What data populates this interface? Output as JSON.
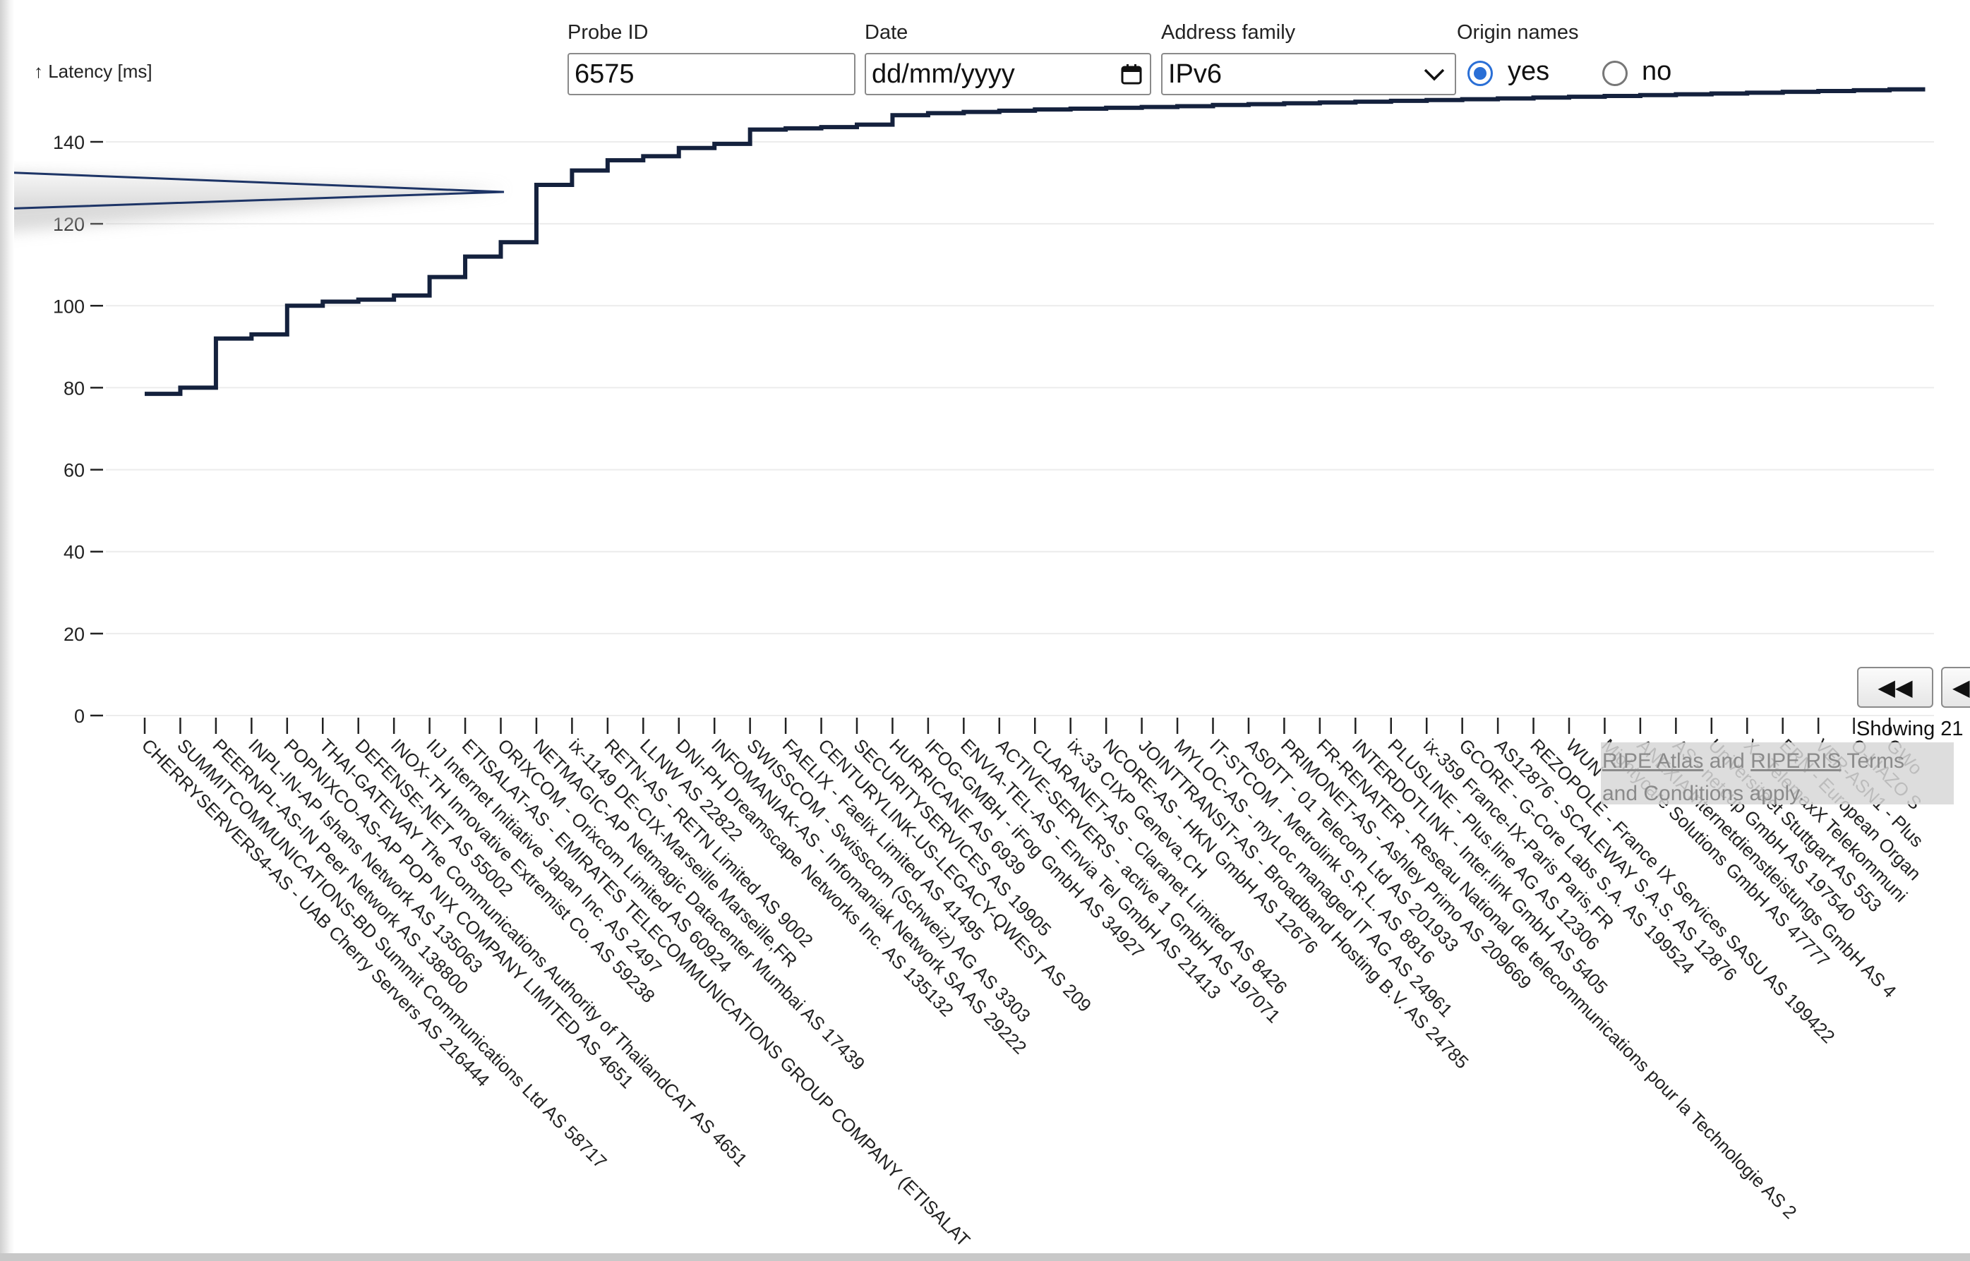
{
  "controls": {
    "probe_label": "Probe ID",
    "probe_value": "6575",
    "date_label": "Date",
    "date_placeholder": "dd/mm/yyyy",
    "family_label": "Address family",
    "family_value": "IPv6",
    "origin_label": "Origin names",
    "origin_yes": "yes",
    "origin_no": "no",
    "origin_selected": "yes"
  },
  "pager": {
    "first_label": "◀◀",
    "prev_label": "◀",
    "showing_text": "Showing 21"
  },
  "footer": {
    "atlas": "RIPE Atlas",
    "and": "and",
    "ris": "RIPE RIS",
    "terms": "Terms",
    "terms2": "and Conditions apply."
  },
  "colors": {
    "line": "#14213d",
    "accent": "#2a6fd6",
    "grid": "#ececec"
  },
  "chart_data": {
    "type": "line",
    "ylabel": "↑ Latency [ms]",
    "ylim": [
      0,
      150
    ],
    "yticks": [
      0,
      20,
      40,
      60,
      80,
      100,
      120,
      140
    ],
    "grid": true,
    "categories": [
      "CHERRYSERVERS4-AS - UAB Cherry Servers AS 216444",
      "SUMMITCOMMUNICATIONS-BD Summit Communications Ltd AS 58717",
      "PEERNPL-AS-IN Peer Network AS 138800",
      "INPL-IN-AP Ishans Network AS 135063",
      "POPNIXCO-AS-AP POP NIX COMPANY LIMITED AS 4651",
      "THAI-GATEWAY The Communications Authority of ThailandCAT AS 4651",
      "DEFENSE-NET AS 55002",
      "INOX-TH Innovative Extremist Co. AS 59238",
      "IIJ Internet Initiative Japan Inc. AS 2497",
      "ETISALAT-AS - EMIRATES TELECOMMUNICATIONS GROUP COMPANY (ETISALAT",
      "ORIXCOM - Orixcom Limited AS 60924",
      "NETMAGIC-AP Netmagic Datacenter Mumbai AS 17439",
      "ix-1149 DE-CIX-Marseille Marseille,FR",
      "RETN-AS - RETN Limited AS 9002",
      "LLNW AS 22822",
      "DNI-PH Dreamscape Networks Inc. AS 135132",
      "INFOMANIAK-AS - Infomaniak Network SA AS 29222",
      "SWISSCOM - Swisscom (Schweiz) AG AS 3303",
      "FAELIX - Faelix Limited AS 41495",
      "CENTURYLINK-US-LEGACY-QWEST AS 209",
      "SECURITYSERVICES AS 19905",
      "HURRICANE AS 6939",
      "IFOG-GMBH - iFog GmbH AS 34927",
      "ENVIA-TEL-AS - Envia Tel GmbH AS 21413",
      "ACTIVE-SERVERS - active 1 GmbH AS 197071",
      "CLARANET-AS - Claranet Limited AS 8426",
      "ix-33 CIXP Geneva,CH",
      "NCORE-AS - HKN GmbH AS 12676",
      "JOINTTRANSIT-AS - Broadband Hosting B.V. AS 24785",
      "MYLOC-AS - myLoc managed IT AG AS 24961",
      "IT-STCOM - Metrolink S.R.L. AS 8816",
      "AS0TT - 01 Telecom Ltd AS 201933",
      "PRIMONET-AS - Ashley Primo AS 209669",
      "FR-RENATER - Reseau National de telecommunications pour la Technologie AS 2",
      "INTERDOTLINK - Inter.link GmbH AS 5405",
      "PLUSLINE - Plus.line AG AS 12306",
      "ix-359 France-IX-Paris Paris,FR",
      "GCORE - G-Core Labs S.A. AS 199524",
      "AS12876 - SCALEWAY S.A.S. AS 12876",
      "REZOPOLE - France IX Services SASU AS 199422",
      "WUN",
      "Mightycare Solutions GmbH AS 47777",
      "ANEXIA Internetdienstleistungs GmbH AS 4",
      "AS - netcup GmbH AS 197540",
      "Universitaet Stuttgart AS 553",
      "X - TelemaxX Telekommuni",
      "ERN - European Organ",
      "VER-ASN1 - Plus",
      "O-LIAZO S",
      "GWo"
    ],
    "values": [
      78.5,
      80,
      92,
      93,
      100,
      101,
      101.5,
      102.5,
      107,
      112,
      115.5,
      129.5,
      133,
      135.5,
      136.5,
      138.5,
      139.5,
      143,
      143.3,
      143.6,
      144.2,
      146.5,
      147,
      147.3,
      147.6,
      147.9,
      148.1,
      148.3,
      148.5,
      148.7,
      149,
      149.2,
      149.4,
      149.6,
      149.8,
      150,
      150.2,
      150.4,
      150.6,
      150.8,
      151,
      151.2,
      151.4,
      151.6,
      151.8,
      152,
      152.2,
      152.4,
      152.6,
      152.8
    ]
  }
}
